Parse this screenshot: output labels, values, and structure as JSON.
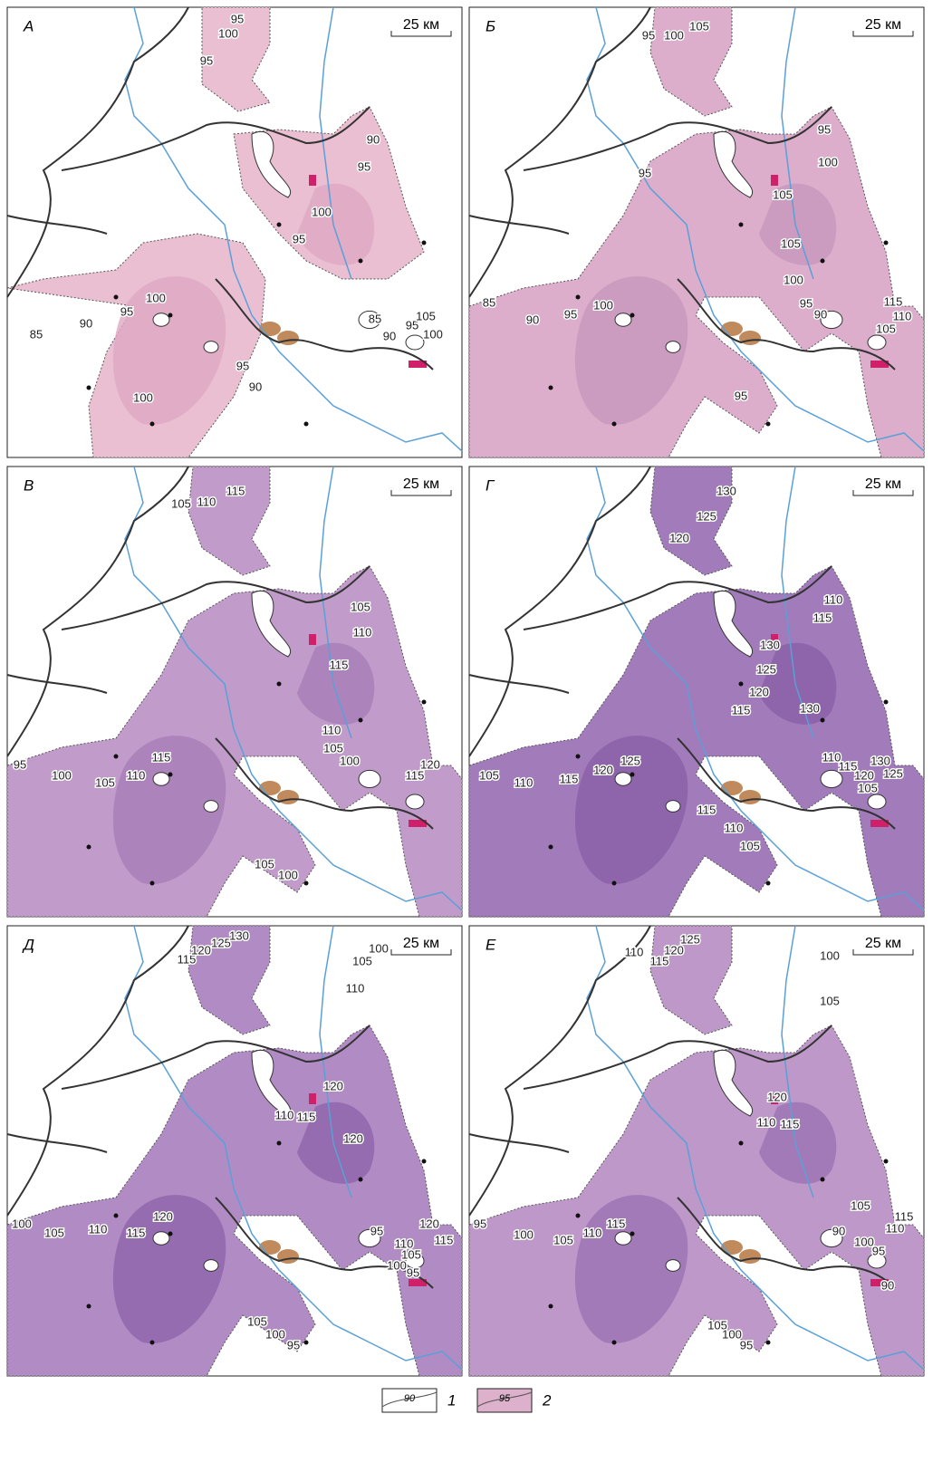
{
  "panels": [
    {
      "label": "А",
      "scale": "25 км",
      "contour_labels": [
        "100",
        "95",
        "95",
        "90",
        "95",
        "100",
        "95",
        "100",
        "95",
        "90",
        "85",
        "85",
        "90",
        "95",
        "105",
        "100",
        "95",
        "90",
        "100"
      ]
    },
    {
      "label": "Б",
      "scale": "25 км",
      "contour_labels": [
        "95",
        "100",
        "105",
        "95",
        "100",
        "95",
        "105",
        "105",
        "100",
        "95",
        "90",
        "115",
        "110",
        "105",
        "85",
        "90",
        "95",
        "100",
        "95"
      ]
    },
    {
      "label": "В",
      "scale": "25 км",
      "contour_labels": [
        "105",
        "110",
        "115",
        "105",
        "110",
        "115",
        "110",
        "105",
        "100",
        "115",
        "120",
        "95",
        "100",
        "105",
        "110",
        "115",
        "105",
        "100"
      ]
    },
    {
      "label": "Г",
      "scale": "25 км",
      "contour_labels": [
        "130",
        "125",
        "120",
        "115",
        "110",
        "130",
        "125",
        "120",
        "115",
        "130",
        "110",
        "115",
        "120",
        "130",
        "125",
        "105",
        "110",
        "115",
        "120",
        "125",
        "105",
        "115",
        "110",
        "105"
      ]
    },
    {
      "label": "Д",
      "scale": "25 км",
      "contour_labels": [
        "115",
        "120",
        "125",
        "130",
        "105",
        "100",
        "110",
        "120",
        "110",
        "115",
        "120",
        "100",
        "105",
        "110",
        "115",
        "120",
        "95",
        "110",
        "105",
        "100",
        "120",
        "115",
        "95",
        "105",
        "100",
        "95"
      ]
    },
    {
      "label": "Е",
      "scale": "25 км",
      "contour_labels": [
        "110",
        "115",
        "120",
        "125",
        "100",
        "105",
        "120",
        "110",
        "115",
        "105",
        "95",
        "100",
        "105",
        "110",
        "115",
        "90",
        "100",
        "95",
        "110",
        "115",
        "105",
        "100",
        "95",
        "90"
      ]
    }
  ],
  "legend": [
    {
      "sample": "90",
      "label": "1"
    },
    {
      "sample": "95",
      "label": "2"
    }
  ]
}
